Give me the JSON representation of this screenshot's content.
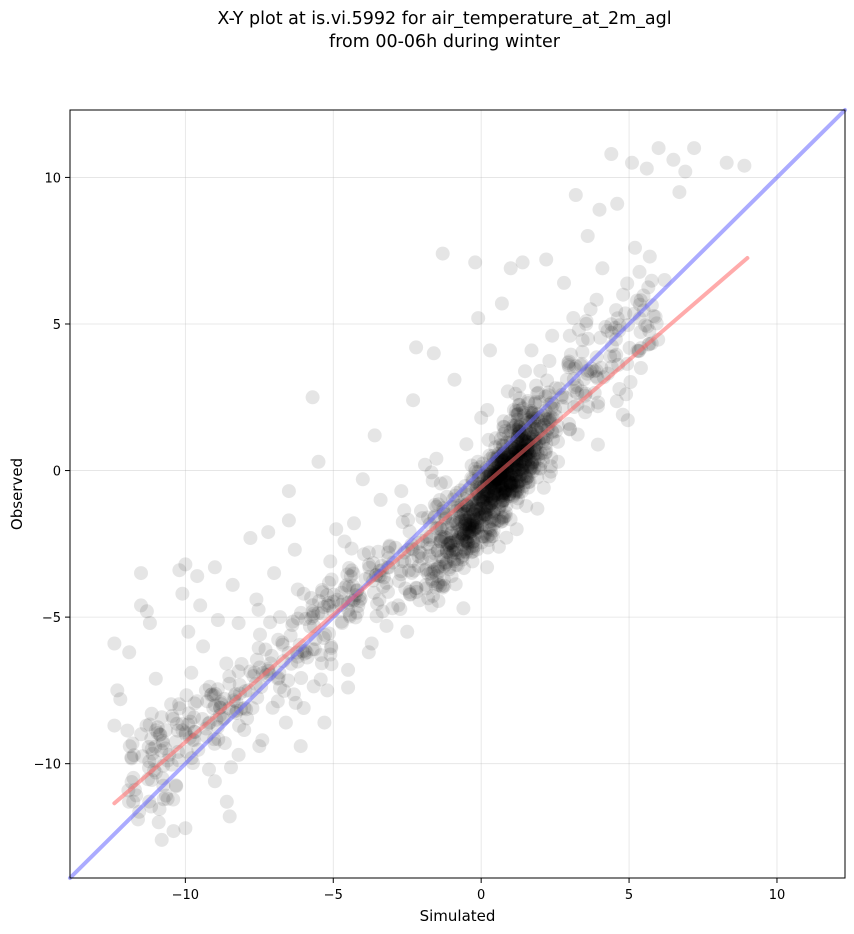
{
  "figure": {
    "title_line1": "X-Y plot at is.vi.5992 for air_temperature_at_2m_agl",
    "title_line2": "from 00-06h during winter"
  },
  "chart_data": {
    "type": "scatter",
    "title": "X-Y plot at is.vi.5992 for air_temperature_at_2m_agl\nfrom 00-06h during winter",
    "xlabel": "Simulated",
    "ylabel": "Observed",
    "xlim": [
      -13.9,
      12.3
    ],
    "ylim": [
      -13.9,
      12.3
    ],
    "x_ticks": [
      -10,
      -5,
      0,
      5,
      10
    ],
    "y_ticks": [
      -10,
      -5,
      0,
      5,
      10
    ],
    "x_tick_labels": [
      "−10",
      "−5",
      "0",
      "5",
      "10"
    ],
    "y_tick_labels": [
      "−10",
      "−5",
      "0",
      "5",
      "10"
    ],
    "grid": true,
    "point_color": "#000000",
    "point_alpha": 0.1,
    "point_count_estimate": 1500,
    "points": [
      [
        -12.4,
        -8.7
      ],
      [
        -12.4,
        -5.9
      ],
      [
        -12.3,
        -7.5
      ],
      [
        -12.2,
        -7.8
      ],
      [
        -11.9,
        -6.2
      ],
      [
        -11.6,
        -11.9
      ],
      [
        -11.5,
        -3.5
      ],
      [
        -11.5,
        -4.6
      ],
      [
        -11.3,
        -4.8
      ],
      [
        -11.2,
        -5.2
      ],
      [
        -11.0,
        -10.3
      ],
      [
        -11.0,
        -7.1
      ],
      [
        -10.9,
        -12.0
      ],
      [
        -10.8,
        -12.6
      ],
      [
        -10.6,
        -11.2
      ],
      [
        -10.4,
        -12.3
      ],
      [
        -10.2,
        -3.4
      ],
      [
        -10.1,
        -4.2
      ],
      [
        -10.0,
        -3.2
      ],
      [
        -10.0,
        -12.2
      ],
      [
        -9.9,
        -5.5
      ],
      [
        -9.8,
        -6.9
      ],
      [
        -9.7,
        -9.2
      ],
      [
        -9.6,
        -3.6
      ],
      [
        -9.5,
        -4.6
      ],
      [
        -9.4,
        -6.0
      ],
      [
        -9.3,
        -8.8
      ],
      [
        -9.2,
        -10.2
      ],
      [
        -9.0,
        -3.3
      ],
      [
        -8.9,
        -5.1
      ],
      [
        -8.8,
        -7.9
      ],
      [
        -8.6,
        -11.3
      ],
      [
        -8.5,
        -11.8
      ],
      [
        -8.4,
        -3.9
      ],
      [
        -8.2,
        -5.2
      ],
      [
        -8.1,
        -6.6
      ],
      [
        -8.0,
        -8.1
      ],
      [
        -7.8,
        -2.3
      ],
      [
        -7.6,
        -4.4
      ],
      [
        -7.5,
        -9.4
      ],
      [
        -7.2,
        -2.1
      ],
      [
        -7.0,
        -3.5
      ],
      [
        -6.8,
        -5.0
      ],
      [
        -6.8,
        -7.4
      ],
      [
        -6.5,
        -0.7
      ],
      [
        -6.5,
        -1.7
      ],
      [
        -6.3,
        -2.7
      ],
      [
        -6.1,
        -9.4
      ],
      [
        -6.0,
        -4.2
      ],
      [
        -5.7,
        -6.1
      ],
      [
        -5.7,
        2.5
      ],
      [
        -5.5,
        0.3
      ],
      [
        -5.3,
        -8.6
      ],
      [
        -5.1,
        -3.1
      ],
      [
        -4.9,
        -2.0
      ],
      [
        -4.7,
        -5.2
      ],
      [
        -4.5,
        -7.4
      ],
      [
        -4.3,
        -1.8
      ],
      [
        -4.0,
        -0.3
      ],
      [
        -3.9,
        -3.7
      ],
      [
        -3.7,
        -5.9
      ],
      [
        -3.6,
        1.2
      ],
      [
        -3.4,
        -1.0
      ],
      [
        -3.1,
        -2.6
      ],
      [
        -3.0,
        -4.7
      ],
      [
        -2.7,
        -0.7
      ],
      [
        -2.5,
        -5.5
      ],
      [
        -2.3,
        2.4
      ],
      [
        -2.2,
        4.2
      ],
      [
        -2.0,
        -3.0
      ],
      [
        -1.9,
        0.2
      ],
      [
        -1.8,
        -1.6
      ],
      [
        -1.6,
        4.0
      ],
      [
        -1.4,
        -2.4
      ],
      [
        -1.3,
        7.4
      ],
      [
        -1.2,
        -0.4
      ],
      [
        -1.0,
        -3.6
      ],
      [
        -0.9,
        3.1
      ],
      [
        -0.8,
        -1.2
      ],
      [
        -0.6,
        -4.7
      ],
      [
        -0.5,
        0.9
      ],
      [
        -0.4,
        -2.1
      ],
      [
        -0.2,
        7.1
      ],
      [
        -0.1,
        5.2
      ],
      [
        0.0,
        1.8
      ],
      [
        0.1,
        -0.7
      ],
      [
        0.2,
        -3.3
      ],
      [
        0.3,
        4.1
      ],
      [
        0.4,
        0.5
      ],
      [
        0.6,
        -2.6
      ],
      [
        0.7,
        5.7
      ],
      [
        0.8,
        -1.0
      ],
      [
        0.9,
        2.7
      ],
      [
        1.0,
        6.9
      ],
      [
        1.1,
        0.1
      ],
      [
        1.2,
        -2.0
      ],
      [
        1.3,
        1.3
      ],
      [
        1.4,
        7.1
      ],
      [
        1.5,
        -0.4
      ],
      [
        1.6,
        2.3
      ],
      [
        1.7,
        4.1
      ],
      [
        1.8,
        0.7
      ],
      [
        1.9,
        -1.3
      ],
      [
        2.0,
        3.4
      ],
      [
        2.1,
        1.0
      ],
      [
        2.2,
        7.2
      ],
      [
        2.3,
        -0.2
      ],
      [
        2.4,
        4.6
      ],
      [
        2.5,
        2.1
      ],
      [
        2.6,
        0.3
      ],
      [
        2.8,
        6.4
      ],
      [
        2.9,
        3.1
      ],
      [
        3.0,
        1.4
      ],
      [
        3.2,
        9.4
      ],
      [
        3.3,
        4.8
      ],
      [
        3.4,
        2.7
      ],
      [
        3.6,
        8.0
      ],
      [
        3.7,
        5.5
      ],
      [
        3.9,
        3.2
      ],
      [
        4.0,
        8.9
      ],
      [
        4.1,
        6.9
      ],
      [
        4.2,
        4.9
      ],
      [
        4.4,
        10.8
      ],
      [
        4.5,
        3.9
      ],
      [
        4.6,
        9.1
      ],
      [
        4.8,
        6.0
      ],
      [
        4.9,
        2.6
      ],
      [
        5.1,
        10.5
      ],
      [
        5.2,
        7.6
      ],
      [
        5.4,
        3.5
      ],
      [
        5.6,
        10.3
      ],
      [
        5.7,
        7.3
      ],
      [
        6.0,
        11.0
      ],
      [
        6.2,
        6.5
      ],
      [
        6.5,
        10.6
      ],
      [
        6.7,
        9.5
      ],
      [
        6.9,
        10.2
      ],
      [
        7.2,
        11.0
      ],
      [
        8.3,
        10.5
      ],
      [
        8.9,
        10.4
      ],
      [
        -0.3,
        -1.9
      ],
      [
        -0.5,
        -2.4
      ],
      [
        -0.7,
        -2.0
      ],
      [
        0.4,
        -1.4
      ],
      [
        0.7,
        -1.6
      ],
      [
        0.9,
        -0.1
      ],
      [
        1.2,
        0.4
      ],
      [
        1.4,
        0.2
      ],
      [
        1.6,
        -0.2
      ],
      [
        1.8,
        0.3
      ],
      [
        1.0,
        -0.5
      ],
      [
        1.3,
        0.6
      ],
      [
        1.5,
        0.9
      ],
      [
        -1.2,
        -3.2
      ],
      [
        -1.5,
        -3.6
      ],
      [
        -2.2,
        -4.0
      ],
      [
        -2.8,
        -4.6
      ],
      [
        -3.2,
        -5.3
      ],
      [
        -3.8,
        -6.2
      ],
      [
        -4.5,
        -6.8
      ],
      [
        -5.2,
        -7.5
      ],
      [
        -6.0,
        -8.1
      ],
      [
        -6.6,
        -8.6
      ],
      [
        -7.4,
        -9.2
      ],
      [
        -8.2,
        -9.7
      ],
      [
        -9.0,
        -10.6
      ],
      [
        -3.4,
        -3.6
      ],
      [
        -4.2,
        -4.1
      ],
      [
        -5.0,
        -4.8
      ],
      [
        -2.6,
        -2.8
      ]
    ],
    "lines": [
      {
        "color": "#6666ff",
        "alpha": 0.55,
        "x": [
          -13.9,
          12.3
        ],
        "y": [
          -13.9,
          12.3
        ]
      },
      {
        "color": "#ff6666",
        "alpha": 0.55,
        "x": [
          -12.4,
          9.0
        ],
        "y": [
          -11.35,
          7.25
        ]
      }
    ]
  }
}
